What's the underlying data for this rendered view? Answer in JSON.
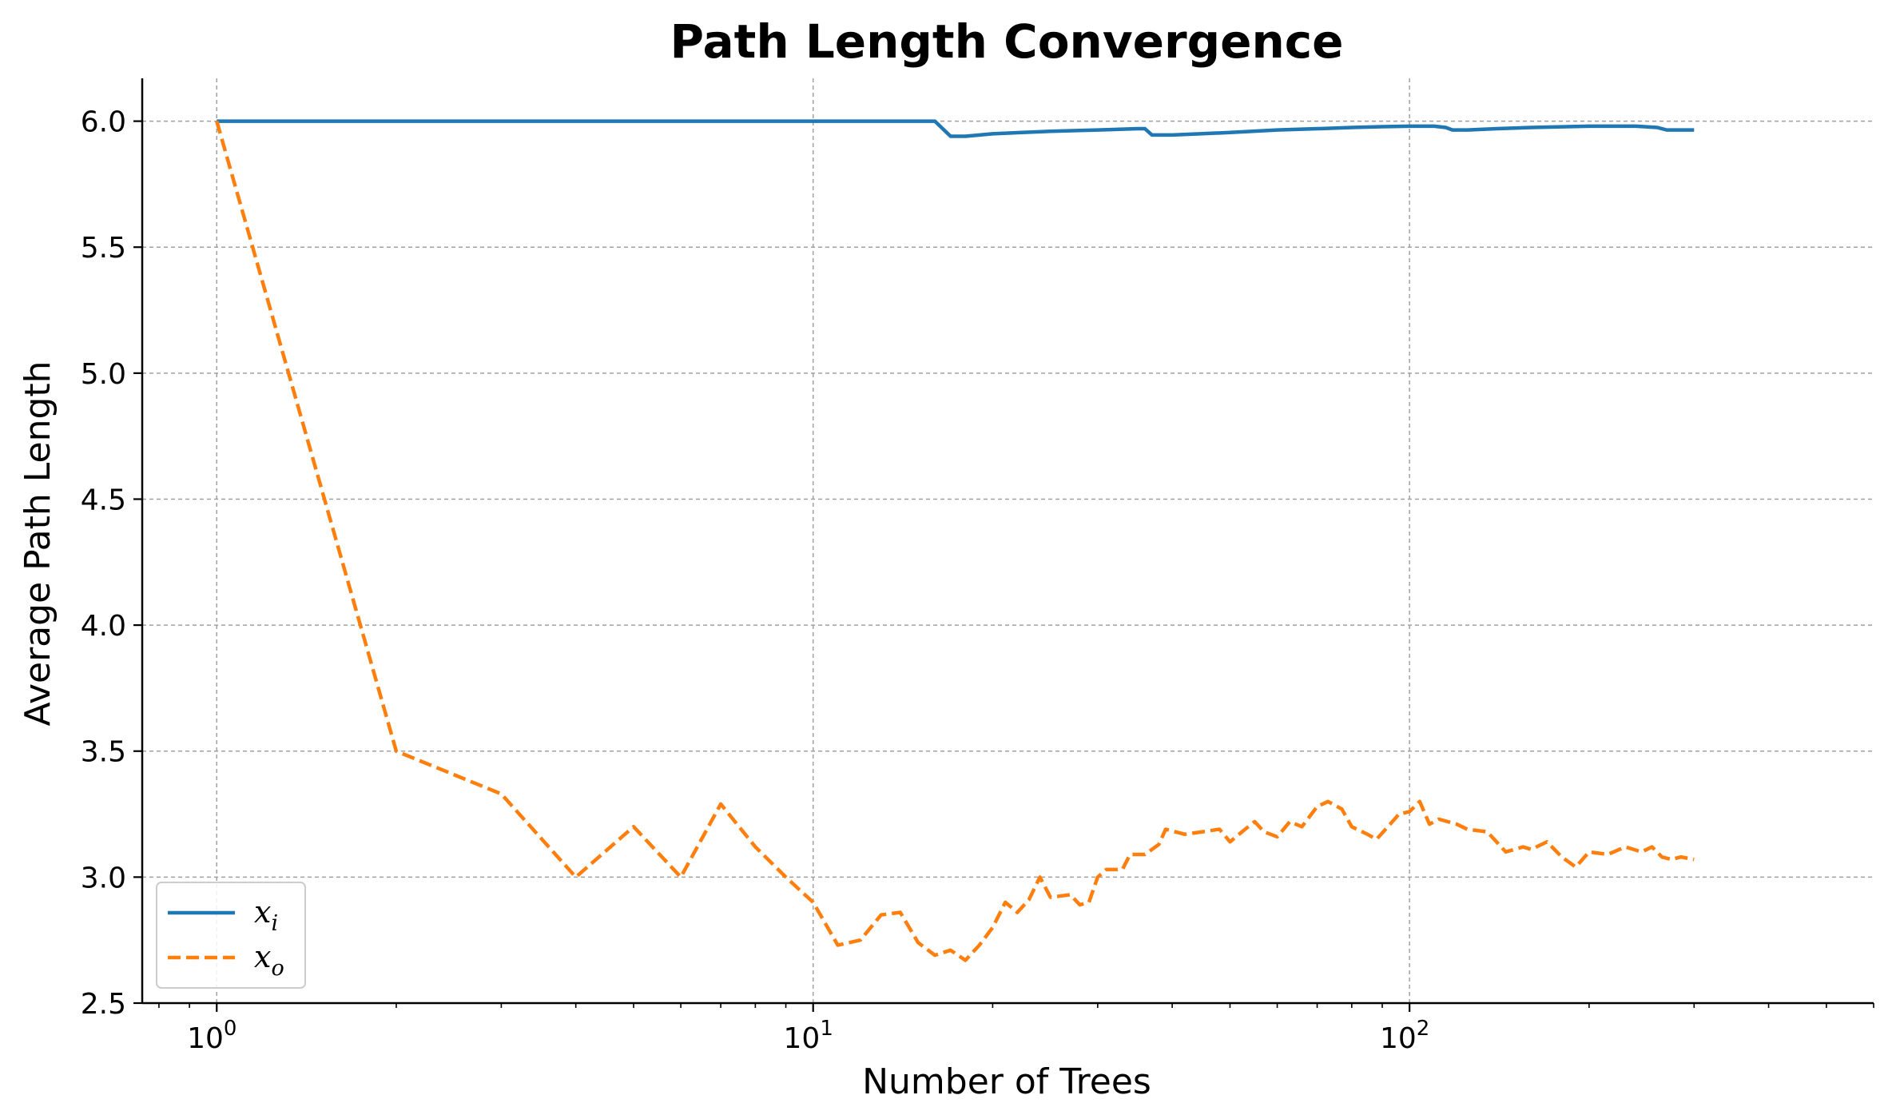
{
  "chart_data": {
    "type": "line",
    "title": "Path Length Convergence",
    "xlabel": "Number of Trees",
    "ylabel": "Average Path Length",
    "xscale": "log",
    "xlim": [
      0.75,
      600
    ],
    "ylim": [
      2.5,
      6.17
    ],
    "grid": true,
    "legend_position": "lower-left",
    "x_ticks": [
      {
        "value": 1,
        "base": "10",
        "exp": "0"
      },
      {
        "value": 10,
        "base": "10",
        "exp": "1"
      },
      {
        "value": 100,
        "base": "10",
        "exp": "2"
      }
    ],
    "y_ticks": [
      {
        "value": 2.5,
        "label": "2.5"
      },
      {
        "value": 3.0,
        "label": "3.0"
      },
      {
        "value": 3.5,
        "label": "3.5"
      },
      {
        "value": 4.0,
        "label": "4.0"
      },
      {
        "value": 4.5,
        "label": "4.5"
      },
      {
        "value": 5.0,
        "label": "5.0"
      },
      {
        "value": 5.5,
        "label": "5.5"
      },
      {
        "value": 6.0,
        "label": "6.0"
      }
    ],
    "series": [
      {
        "name": "x_i",
        "legend_main": "x",
        "legend_sub": "i",
        "color": "#1f77b4",
        "dash": "solid",
        "points": [
          [
            1,
            6.0
          ],
          [
            16,
            6.0
          ],
          [
            17,
            5.94
          ],
          [
            18,
            5.94
          ],
          [
            20,
            5.95
          ],
          [
            25,
            5.96
          ],
          [
            30,
            5.965
          ],
          [
            35,
            5.97
          ],
          [
            36,
            5.97
          ],
          [
            37,
            5.945
          ],
          [
            40,
            5.945
          ],
          [
            50,
            5.955
          ],
          [
            60,
            5.965
          ],
          [
            70,
            5.97
          ],
          [
            80,
            5.975
          ],
          [
            90,
            5.978
          ],
          [
            100,
            5.98
          ],
          [
            110,
            5.98
          ],
          [
            115,
            5.975
          ],
          [
            118,
            5.965
          ],
          [
            125,
            5.965
          ],
          [
            140,
            5.97
          ],
          [
            160,
            5.975
          ],
          [
            200,
            5.98
          ],
          [
            240,
            5.98
          ],
          [
            260,
            5.975
          ],
          [
            270,
            5.965
          ],
          [
            280,
            5.965
          ],
          [
            300,
            5.965
          ]
        ]
      },
      {
        "name": "x_o",
        "legend_main": "x",
        "legend_sub": "o",
        "color": "#ff7f0e",
        "dash": "dashed",
        "points": [
          [
            1,
            6.0
          ],
          [
            2,
            3.5
          ],
          [
            3,
            3.33
          ],
          [
            4,
            3.0
          ],
          [
            5,
            3.2
          ],
          [
            6,
            3.0
          ],
          [
            7,
            3.29
          ],
          [
            8,
            3.12
          ],
          [
            9,
            3.0
          ],
          [
            10,
            2.9
          ],
          [
            11,
            2.73
          ],
          [
            12,
            2.75
          ],
          [
            13,
            2.85
          ],
          [
            14,
            2.86
          ],
          [
            15,
            2.74
          ],
          [
            16,
            2.69
          ],
          [
            17,
            2.71
          ],
          [
            18,
            2.67
          ],
          [
            19,
            2.73
          ],
          [
            20,
            2.8
          ],
          [
            21,
            2.9
          ],
          [
            22,
            2.86
          ],
          [
            23,
            2.91
          ],
          [
            24,
            3.0
          ],
          [
            25,
            2.92
          ],
          [
            27,
            2.93
          ],
          [
            28,
            2.89
          ],
          [
            29,
            2.9
          ],
          [
            30,
            3.0
          ],
          [
            31,
            3.03
          ],
          [
            33,
            3.03
          ],
          [
            34,
            3.09
          ],
          [
            36,
            3.09
          ],
          [
            38,
            3.13
          ],
          [
            39,
            3.19
          ],
          [
            42,
            3.17
          ],
          [
            45,
            3.18
          ],
          [
            48,
            3.19
          ],
          [
            50,
            3.14
          ],
          [
            53,
            3.19
          ],
          [
            55,
            3.22
          ],
          [
            57,
            3.18
          ],
          [
            60,
            3.16
          ],
          [
            63,
            3.22
          ],
          [
            66,
            3.2
          ],
          [
            70,
            3.28
          ],
          [
            73,
            3.3
          ],
          [
            77,
            3.27
          ],
          [
            80,
            3.2
          ],
          [
            85,
            3.17
          ],
          [
            88,
            3.15
          ],
          [
            92,
            3.2
          ],
          [
            96,
            3.25
          ],
          [
            100,
            3.26
          ],
          [
            104,
            3.3
          ],
          [
            108,
            3.21
          ],
          [
            112,
            3.23
          ],
          [
            120,
            3.21
          ],
          [
            125,
            3.19
          ],
          [
            135,
            3.18
          ],
          [
            145,
            3.1
          ],
          [
            155,
            3.12
          ],
          [
            160,
            3.11
          ],
          [
            170,
            3.14
          ],
          [
            180,
            3.08
          ],
          [
            190,
            3.04
          ],
          [
            200,
            3.1
          ],
          [
            215,
            3.09
          ],
          [
            230,
            3.12
          ],
          [
            245,
            3.1
          ],
          [
            255,
            3.12
          ],
          [
            265,
            3.08
          ],
          [
            275,
            3.07
          ],
          [
            285,
            3.08
          ],
          [
            300,
            3.07
          ]
        ]
      }
    ]
  }
}
